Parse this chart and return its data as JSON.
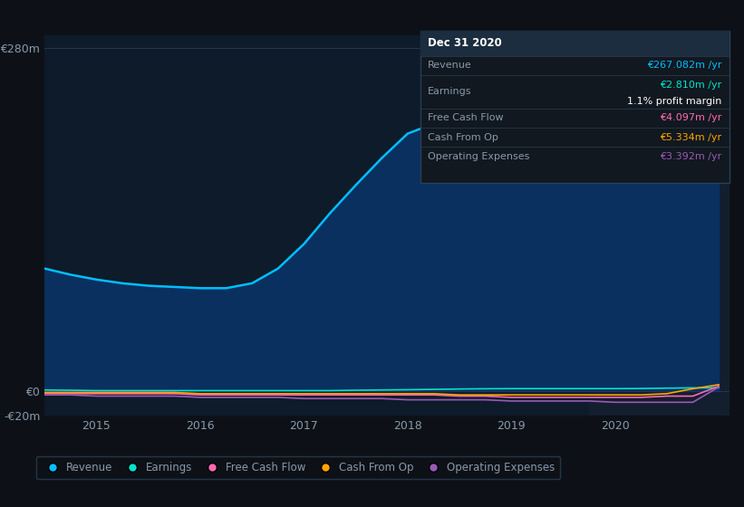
{
  "bg_color": "#0d1117",
  "plot_bg_color": "#0d1b2a",
  "forecast_bg_color": "#131e2e",
  "grid_color": "#253550",
  "text_color": "#8899aa",
  "title_text_color": "#ffffff",
  "years": [
    2014.5,
    2014.75,
    2015.0,
    2015.25,
    2015.5,
    2015.75,
    2016.0,
    2016.25,
    2016.5,
    2016.75,
    2017.0,
    2017.25,
    2017.5,
    2017.75,
    2018.0,
    2018.25,
    2018.5,
    2018.75,
    2019.0,
    2019.25,
    2019.5,
    2019.75,
    2020.0,
    2020.25,
    2020.5,
    2020.75,
    2021.0
  ],
  "revenue": [
    100,
    95,
    91,
    88,
    86,
    85,
    84,
    84,
    88,
    100,
    120,
    145,
    168,
    190,
    210,
    218,
    217,
    213,
    208,
    205,
    203,
    200,
    198,
    208,
    228,
    252,
    267
  ],
  "earnings": [
    1,
    0.8,
    0.5,
    0.5,
    0.5,
    0.5,
    0.5,
    0.5,
    0.5,
    0.5,
    0.5,
    0.5,
    0.8,
    1.0,
    1.2,
    1.5,
    1.8,
    2.0,
    2.1,
    2.1,
    2.1,
    2.1,
    2.1,
    2.2,
    2.5,
    2.7,
    2.81
  ],
  "free_cash_flow": [
    -2,
    -2,
    -2,
    -2,
    -2,
    -2,
    -3,
    -3,
    -3,
    -3,
    -3,
    -3,
    -3,
    -3,
    -3,
    -3,
    -4,
    -4,
    -5,
    -5,
    -5,
    -5,
    -5,
    -5,
    -4,
    -4,
    4.097
  ],
  "cash_from_op": [
    -1,
    -1,
    -1,
    -1,
    -1,
    -1,
    -2,
    -2,
    -2,
    -2,
    -2,
    -2,
    -2,
    -2,
    -2,
    -2,
    -3,
    -3,
    -3,
    -3,
    -3,
    -3,
    -3,
    -3,
    -2,
    2,
    5.334
  ],
  "operating_expenses": [
    -3,
    -3,
    -4,
    -4,
    -4,
    -4,
    -5,
    -5,
    -5,
    -5,
    -6,
    -6,
    -6,
    -6,
    -7,
    -7,
    -7,
    -7,
    -8,
    -8,
    -8,
    -8,
    -9,
    -9,
    -9,
    -9,
    3.392
  ],
  "revenue_color": "#00bfff",
  "revenue_fill_color": "#0a3060",
  "earnings_color": "#00e5cc",
  "free_cash_flow_color": "#ff69b4",
  "cash_from_op_color": "#ffa500",
  "operating_expenses_color": "#9b59b6",
  "ylim": [
    -20,
    290
  ],
  "yticks": [
    -20,
    0,
    280
  ],
  "ytick_labels": [
    "-€20m",
    "€0",
    "€280m"
  ],
  "xticks": [
    2015,
    2016,
    2017,
    2018,
    2019,
    2020
  ],
  "forecast_start": 2019.75,
  "xmin": 2014.5,
  "xmax": 2021.1,
  "tooltip_date": "Dec 31 2020",
  "tooltip_revenue_label": "Revenue",
  "tooltip_revenue_value": "€267.082m /yr",
  "tooltip_earnings_label": "Earnings",
  "tooltip_earnings_value": "€2.810m /yr",
  "tooltip_margin": "1.1% profit margin",
  "tooltip_fcf_label": "Free Cash Flow",
  "tooltip_fcf_value": "€4.097m /yr",
  "tooltip_cashop_label": "Cash From Op",
  "tooltip_cashop_value": "€5.334m /yr",
  "tooltip_opex_label": "Operating Expenses",
  "tooltip_opex_value": "€3.392m /yr",
  "legend_labels": [
    "Revenue",
    "Earnings",
    "Free Cash Flow",
    "Cash From Op",
    "Operating Expenses"
  ],
  "legend_colors": [
    "#00bfff",
    "#00e5cc",
    "#ff69b4",
    "#ffa500",
    "#9b59b6"
  ]
}
